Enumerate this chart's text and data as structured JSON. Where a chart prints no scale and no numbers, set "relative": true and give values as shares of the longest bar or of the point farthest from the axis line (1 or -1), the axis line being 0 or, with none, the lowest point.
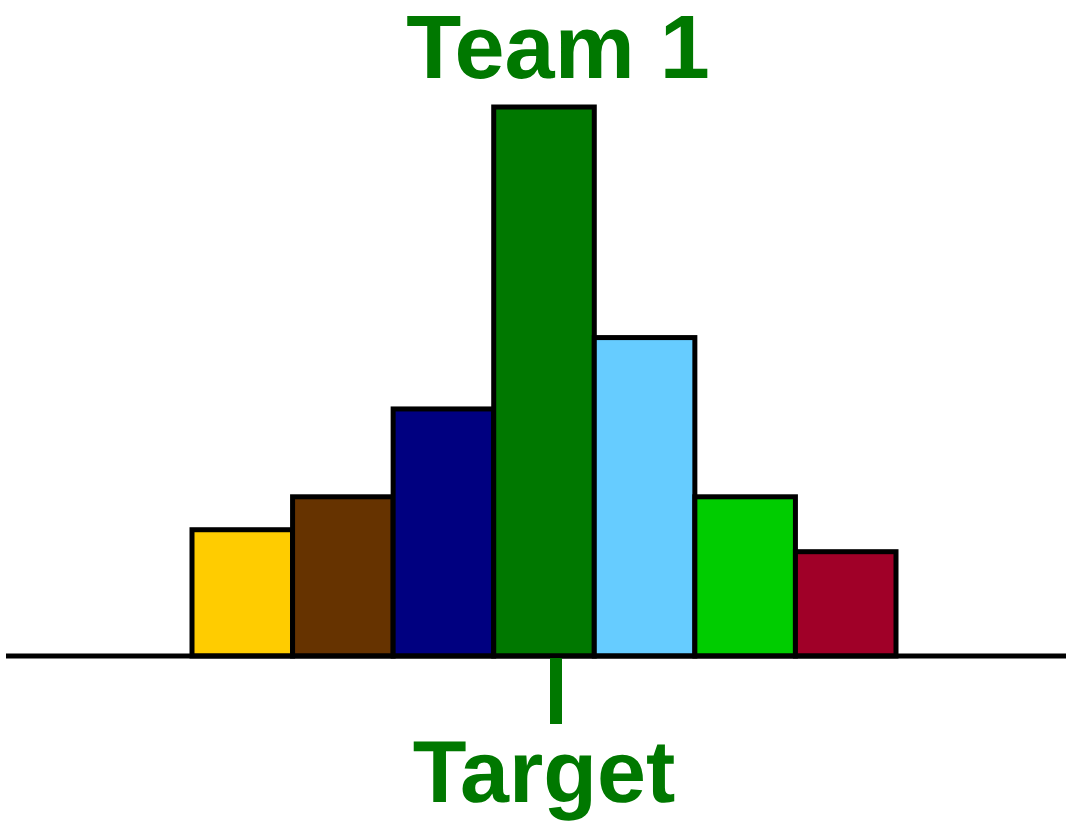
{
  "chart_data": {
    "type": "bar",
    "title": "Team 1",
    "relative": true,
    "categories": [
      null,
      null,
      null,
      null,
      null,
      null,
      null
    ],
    "values": [
      0.23,
      0.29,
      0.45,
      1,
      0.58,
      0.29,
      0.19
    ],
    "colors": [
      "#ffcc00",
      "#663300",
      "#000080",
      "#007800",
      "#66ccff",
      "#00cc00",
      "#a00028"
    ],
    "annotations": [
      "Target"
    ]
  }
}
